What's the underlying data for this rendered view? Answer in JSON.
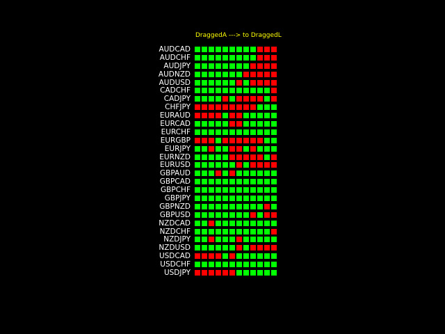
{
  "title": "DraggedA ---> to DraggedL",
  "colors": {
    "up": "#00ff00",
    "down": "#ff0000",
    "label": "#ffffff",
    "title": "#ffff00"
  },
  "legend": {
    "G": "green",
    "R": "red"
  },
  "rows": [
    {
      "pair": "AUDCAD",
      "cells": "GGGGGGGGGRRR"
    },
    {
      "pair": "AUDCHF",
      "cells": "GGGGGGGGGRRR"
    },
    {
      "pair": "AUDJPY",
      "cells": "GGGGGGGGRRRR"
    },
    {
      "pair": "AUDNZD",
      "cells": "GGGGGGGRRRRR"
    },
    {
      "pair": "AUDUSD",
      "cells": "GGGGGGRGRRRR"
    },
    {
      "pair": "CADCHF",
      "cells": "GGGGGGGGGGGR"
    },
    {
      "pair": "CADJPY",
      "cells": "GGGGRGRRRRGR"
    },
    {
      "pair": "CHFJPY",
      "cells": "RRRRRRRRRGGG"
    },
    {
      "pair": "EURAUD",
      "cells": "RRRRGRRGGGGG"
    },
    {
      "pair": "EURCAD",
      "cells": "GGGGGRRGGGGG"
    },
    {
      "pair": "EURCHF",
      "cells": "GGGGGGGGGGGG"
    },
    {
      "pair": "EURGBP",
      "cells": "RRRGRRRRRRGG"
    },
    {
      "pair": "EURJPY",
      "cells": "GGRGGRRGRGGG"
    },
    {
      "pair": "EURNZD",
      "cells": "GGGGGRRRRRGR"
    },
    {
      "pair": "EURUSD",
      "cells": "GGGGGGRGRRRR"
    },
    {
      "pair": "GBPAUD",
      "cells": "GGGRGRGGGGGG"
    },
    {
      "pair": "GBPCAD",
      "cells": "GGGGGGGGGGGG"
    },
    {
      "pair": "GBPCHF",
      "cells": "GGGGGGGGGGGG"
    },
    {
      "pair": "GBPJPY",
      "cells": "GGGGGGGGGGGG"
    },
    {
      "pair": "GBPNZD",
      "cells": "GGGGGGGGGGRG"
    },
    {
      "pair": "GBPUSD",
      "cells": "GGGGGGGGRGRR"
    },
    {
      "pair": "NZDCAD",
      "cells": "GGRGGGGGGGGG"
    },
    {
      "pair": "NZDCHF",
      "cells": "GGGGGGGGGGGR"
    },
    {
      "pair": "NZDJPY",
      "cells": "GGRGGGRGGGGG"
    },
    {
      "pair": "NZDUSD",
      "cells": "GGGGGGRGRRRR"
    },
    {
      "pair": "USDCAD",
      "cells": "RRRRGRGGGGGG"
    },
    {
      "pair": "USDCHF",
      "cells": "GGGGGGGGGGGG"
    },
    {
      "pair": "USDJPY",
      "cells": "RRRRRRGGGGGG"
    }
  ]
}
